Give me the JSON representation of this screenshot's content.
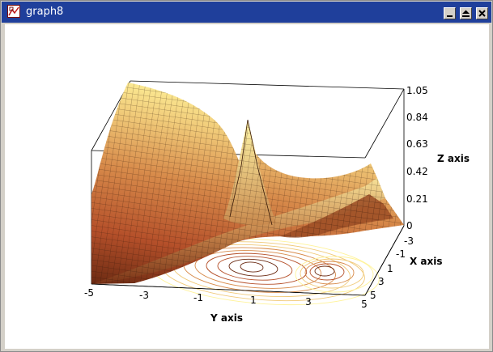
{
  "window": {
    "title": "graph8",
    "buttons": [
      "minimize",
      "maximize",
      "close"
    ]
  },
  "chart_data": {
    "type": "surface3d",
    "xlabel": "X axis",
    "ylabel": "Y axis",
    "zlabel": "Z axis",
    "x_ticks": [
      "-3",
      "-1",
      "1",
      "3",
      "5"
    ],
    "y_ticks": [
      "-5",
      "-3",
      "-1",
      "1",
      "3",
      "5"
    ],
    "z_ticks": [
      "0",
      "0.21",
      "0.42",
      "0.63",
      "0.84",
      "1.05"
    ],
    "x_range": [
      -5,
      5
    ],
    "y_range": [
      -5,
      5
    ],
    "z_range": [
      0,
      1.05
    ],
    "colormap": [
      "#6b2a12",
      "#b5502a",
      "#d78a4a",
      "#f0c978",
      "#fff39a"
    ],
    "contour_base": true,
    "bounding_box": true
  }
}
